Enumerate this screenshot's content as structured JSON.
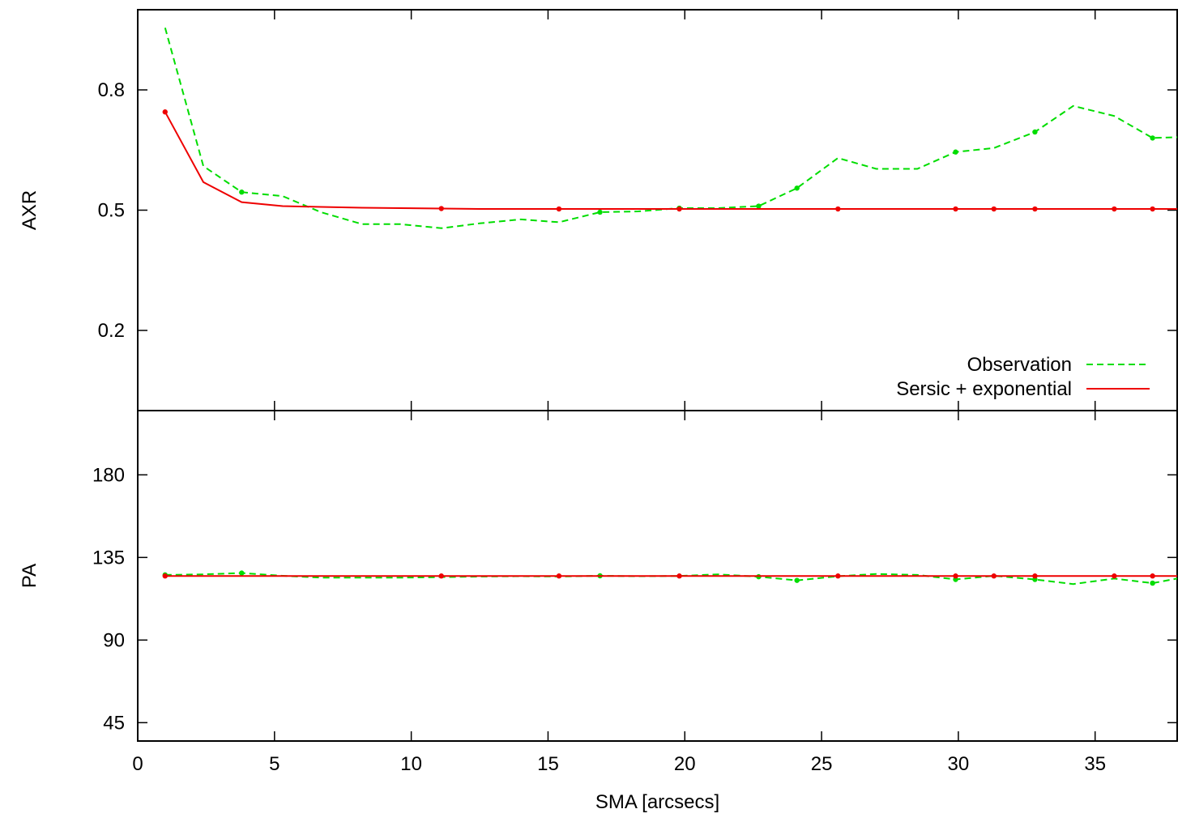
{
  "chart_data": [
    {
      "type": "line",
      "ylabel": "AXR",
      "xlim": [
        0,
        38
      ],
      "ylim": [
        0,
        1.0
      ],
      "yticks": [
        "0.2",
        "0.5",
        "0.8"
      ],
      "legend": "bottom-right",
      "series": [
        {
          "name": "Observation",
          "color": "#00dd00",
          "style": "dashed",
          "x": [
            1.0,
            2.4,
            3.8,
            5.3,
            6.7,
            8.2,
            9.6,
            11.1,
            12.5,
            14.0,
            15.4,
            16.9,
            18.3,
            19.8,
            21.2,
            22.7,
            24.1,
            25.6,
            27.0,
            28.5,
            29.9,
            31.3,
            32.8,
            34.2,
            35.7,
            37.1,
            38.0
          ],
          "y": [
            0.955,
            0.61,
            0.545,
            0.535,
            0.495,
            0.465,
            0.465,
            0.455,
            0.467,
            0.477,
            0.47,
            0.495,
            0.497,
            0.505,
            0.505,
            0.51,
            0.555,
            0.63,
            0.603,
            0.603,
            0.645,
            0.655,
            0.695,
            0.76,
            0.735,
            0.68,
            0.682
          ],
          "markers": [
            3.8,
            16.9,
            19.8,
            22.7,
            24.1,
            29.9,
            32.8,
            37.1
          ]
        },
        {
          "name": "Sersic + exponential",
          "color": "#ee0000",
          "style": "solid",
          "x": [
            1.0,
            2.4,
            3.8,
            5.3,
            6.7,
            8.2,
            9.6,
            11.1,
            12.5,
            14.0,
            15.4,
            16.9,
            18.3,
            19.8,
            21.2,
            22.7,
            24.1,
            25.6,
            27.0,
            28.5,
            29.9,
            31.3,
            32.8,
            34.2,
            35.7,
            37.1,
            38.0
          ],
          "y": [
            0.745,
            0.57,
            0.52,
            0.51,
            0.508,
            0.506,
            0.505,
            0.504,
            0.503,
            0.503,
            0.503,
            0.503,
            0.503,
            0.503,
            0.503,
            0.503,
            0.503,
            0.503,
            0.503,
            0.503,
            0.503,
            0.503,
            0.503,
            0.503,
            0.503,
            0.503,
            0.503
          ],
          "markers": [
            1.0,
            11.1,
            15.4,
            19.8,
            25.6,
            29.9,
            31.3,
            32.8,
            35.7,
            37.1
          ]
        }
      ]
    },
    {
      "type": "line",
      "ylabel": "PA",
      "xlabel": "SMA [arcsecs]",
      "xlim": [
        0,
        38
      ],
      "ylim": [
        35,
        215
      ],
      "yticks": [
        "45",
        "90",
        "135",
        "180"
      ],
      "xticks": [
        "0",
        "5",
        "10",
        "15",
        "20",
        "25",
        "30",
        "35"
      ],
      "series": [
        {
          "name": "Observation",
          "color": "#00dd00",
          "style": "dashed",
          "x": [
            1.0,
            2.4,
            3.8,
            5.3,
            6.7,
            8.2,
            9.6,
            11.1,
            12.5,
            14.0,
            15.4,
            16.9,
            18.3,
            19.8,
            21.2,
            22.7,
            24.1,
            25.6,
            27.0,
            28.5,
            29.9,
            31.3,
            32.8,
            34.2,
            35.7,
            37.1,
            38.0
          ],
          "y": [
            125.5,
            125.8,
            126.5,
            125.0,
            124.0,
            124.0,
            124.0,
            124.3,
            124.6,
            124.8,
            124.6,
            125.0,
            124.8,
            124.9,
            125.8,
            124.5,
            122.5,
            124.8,
            126.0,
            125.5,
            123.0,
            125.0,
            123.0,
            120.5,
            123.5,
            121.0,
            123.5
          ],
          "markers": [
            1.0,
            3.8,
            16.9,
            22.7,
            24.1,
            29.9,
            32.8,
            37.1
          ]
        },
        {
          "name": "Sersic + exponential",
          "color": "#ee0000",
          "style": "solid",
          "x": [
            1.0,
            5.0,
            10.0,
            15.0,
            20.0,
            25.0,
            30.0,
            35.0,
            38.0
          ],
          "y": [
            124.9,
            124.9,
            124.9,
            124.9,
            124.9,
            124.9,
            124.9,
            124.9,
            124.9
          ],
          "markers": [
            1.0,
            11.1,
            15.4,
            19.8,
            25.6,
            29.9,
            31.3,
            32.8,
            35.7,
            37.1
          ]
        }
      ]
    }
  ]
}
